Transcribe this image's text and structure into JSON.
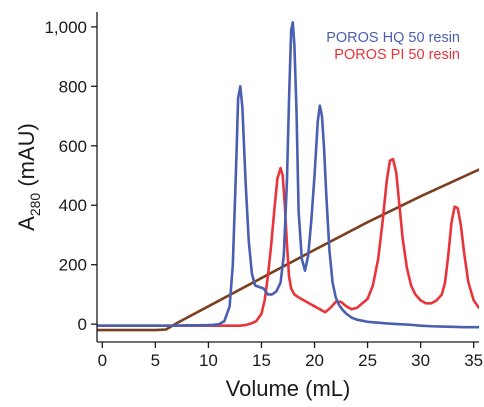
{
  "chart_data": {
    "type": "line",
    "title": "",
    "xlabel": "Volume (mL)",
    "ylabel": {
      "prefix": "A",
      "subscript": "280",
      "suffix": " (mAU)"
    },
    "xlim": [
      -0.5,
      35.5
    ],
    "ylim": [
      -60,
      1050
    ],
    "x_ticks": [
      0,
      5,
      10,
      15,
      20,
      25,
      30,
      35
    ],
    "x_tick_labels": [
      "0",
      "5",
      "10",
      "15",
      "20",
      "25",
      "30",
      "35"
    ],
    "y_ticks": [
      0,
      200,
      400,
      600,
      800,
      1000
    ],
    "y_tick_labels": [
      "0",
      "200",
      "400",
      "600",
      "800",
      "1,000"
    ],
    "grid": false,
    "legend_position": "top-right",
    "series": [
      {
        "name": "POROS HQ 50 resin",
        "color": "#4a5fb0",
        "x": [
          -0.5,
          1,
          2,
          3,
          4,
          5,
          6,
          7,
          8,
          9,
          10,
          10.5,
          11,
          11.5,
          12,
          12.3,
          12.6,
          12.8,
          13.0,
          13.2,
          13.5,
          13.8,
          14.1,
          14.4,
          14.8,
          15.2,
          15.6,
          16.0,
          16.4,
          16.8,
          17.1,
          17.4,
          17.6,
          17.8,
          17.95,
          18.1,
          18.3,
          18.5,
          18.8,
          19.1,
          19.4,
          19.7,
          20.0,
          20.3,
          20.5,
          20.7,
          20.9,
          21.1,
          21.4,
          21.7,
          22.0,
          22.3,
          22.6,
          23.0,
          23.5,
          24.0,
          25,
          26,
          27,
          28,
          29,
          30,
          31,
          32,
          33,
          34,
          35,
          35.5
        ],
        "y": [
          -5,
          -5,
          -5,
          -5,
          -5,
          -5,
          -5,
          -5,
          -4,
          -4,
          -3,
          -2,
          0,
          10,
          60,
          200,
          520,
          760,
          800,
          730,
          480,
          280,
          170,
          130,
          125,
          120,
          100,
          100,
          110,
          140,
          230,
          480,
          760,
          990,
          1015,
          940,
          720,
          380,
          220,
          180,
          230,
          350,
          500,
          680,
          735,
          700,
          590,
          440,
          250,
          140,
          90,
          65,
          50,
          35,
          22,
          15,
          8,
          5,
          2,
          0,
          -2,
          -5,
          -7,
          -8,
          -9,
          -10,
          -10,
          -10
        ]
      },
      {
        "name": "POROS PI 50 resin",
        "color": "#e8343a",
        "x": [
          -0.5,
          1,
          2,
          3,
          4,
          5,
          6,
          7,
          8,
          9,
          10,
          11,
          12,
          13,
          13.5,
          14,
          14.5,
          15,
          15.3,
          15.6,
          15.9,
          16.2,
          16.5,
          16.8,
          17.0,
          17.2,
          17.4,
          17.6,
          17.8,
          18.1,
          18.5,
          19,
          19.5,
          20,
          20.5,
          21,
          21.5,
          22,
          22.5,
          23,
          23.5,
          24,
          24.5,
          25,
          25.5,
          26,
          26.4,
          26.8,
          27.1,
          27.4,
          27.7,
          28.0,
          28.3,
          28.7,
          29.1,
          29.5,
          30,
          30.5,
          31,
          31.5,
          32,
          32.3,
          32.6,
          32.9,
          33.2,
          33.5,
          33.8,
          34.1,
          34.5,
          35,
          35.5
        ],
        "y": [
          -5,
          -5,
          -5,
          -5,
          -5,
          -5,
          -5,
          -5,
          -5,
          -5,
          -5,
          -5,
          -5,
          -5,
          -3,
          2,
          10,
          35,
          80,
          160,
          260,
          380,
          490,
          525,
          500,
          400,
          270,
          160,
          120,
          100,
          90,
          80,
          70,
          60,
          50,
          40,
          55,
          75,
          75,
          60,
          50,
          55,
          70,
          85,
          130,
          220,
          340,
          480,
          550,
          555,
          510,
          400,
          290,
          190,
          130,
          100,
          80,
          70,
          70,
          80,
          100,
          140,
          230,
          340,
          395,
          390,
          330,
          240,
          140,
          80,
          55
        ]
      },
      {
        "name": "",
        "color": "#7b3f1f",
        "x": [
          -0.5,
          2,
          4,
          5,
          6,
          7,
          10,
          15,
          20,
          25,
          30,
          35.5
        ],
        "y": [
          -20,
          -20,
          -20,
          -20,
          -18,
          3,
          60,
          155,
          250,
          343,
          430,
          520
        ]
      }
    ]
  }
}
